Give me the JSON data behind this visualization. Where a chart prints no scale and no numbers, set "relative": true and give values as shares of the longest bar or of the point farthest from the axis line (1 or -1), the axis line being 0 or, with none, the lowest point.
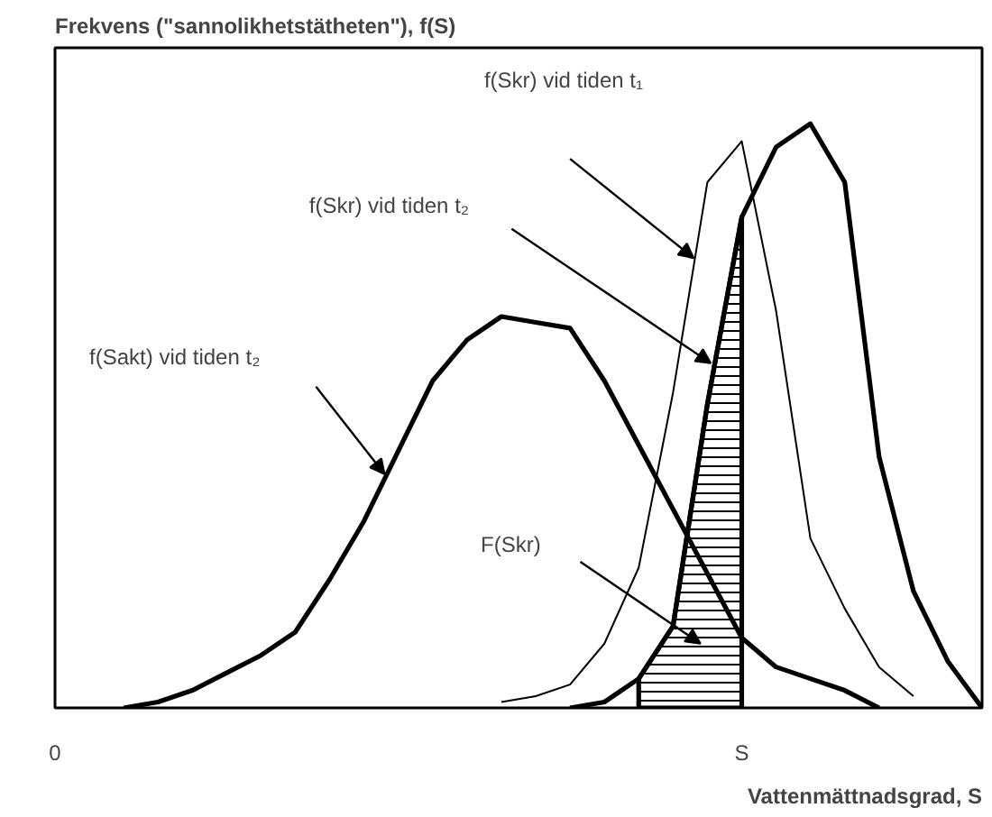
{
  "chart_data": {
    "type": "line",
    "relative": true,
    "ylabel": "Frekvens (\"sannolikhetstätheten\"), f(S)",
    "xlabel": "Vattenmättnadsgrad, S",
    "categories": [
      "0",
      null,
      null,
      null,
      null,
      null,
      null,
      null,
      null,
      null,
      null,
      null,
      null,
      null,
      null,
      null,
      null,
      null,
      null,
      null,
      "S",
      null,
      null,
      null,
      null,
      null,
      null,
      null
    ],
    "tick_labels": "x",
    "grid": false,
    "series": [
      {
        "color": "#000000",
        "values": [
          null,
          null,
          0,
          0.01,
          0.03,
          0.06,
          0.09,
          0.13,
          0.22,
          0.32,
          0.44,
          0.56,
          0.63,
          0.67,
          0.66,
          0.65,
          0.56,
          0.45,
          0.34,
          0.23,
          0.12,
          0.07,
          0.05,
          0.03,
          0,
          null,
          null,
          null
        ]
      },
      {
        "color": "#000000",
        "values": [
          null,
          null,
          null,
          null,
          null,
          null,
          null,
          null,
          null,
          null,
          null,
          null,
          null,
          null,
          null,
          0,
          0.01,
          0.05,
          0.14,
          0.52,
          0.84,
          0.96,
          1,
          0.9,
          0.43,
          0.2,
          0.08,
          0
        ]
      },
      {
        "color": "#000000",
        "values": [
          null,
          null,
          null,
          null,
          null,
          null,
          null,
          null,
          null,
          null,
          null,
          null,
          null,
          0.01,
          0.02,
          0.04,
          0.11,
          0.24,
          0.54,
          0.9,
          0.97,
          0.68,
          0.29,
          0.17,
          0.07,
          0.02,
          null,
          null
        ]
      },
      {
        "type": "area",
        "color": "#000000",
        "values": [
          null,
          null,
          null,
          null,
          null,
          null,
          null,
          null,
          null,
          null,
          null,
          null,
          null,
          null,
          null,
          null,
          null,
          0.05,
          0.14,
          0.52,
          0.84,
          null,
          null,
          null,
          null,
          null,
          null,
          null
        ]
      }
    ],
    "annotations": [
      "f(Skr) vid tiden t₁",
      "f(Skr) vid tiden t₂",
      "f(Sakt) vid tiden t₂",
      "F(Skr)"
    ]
  }
}
